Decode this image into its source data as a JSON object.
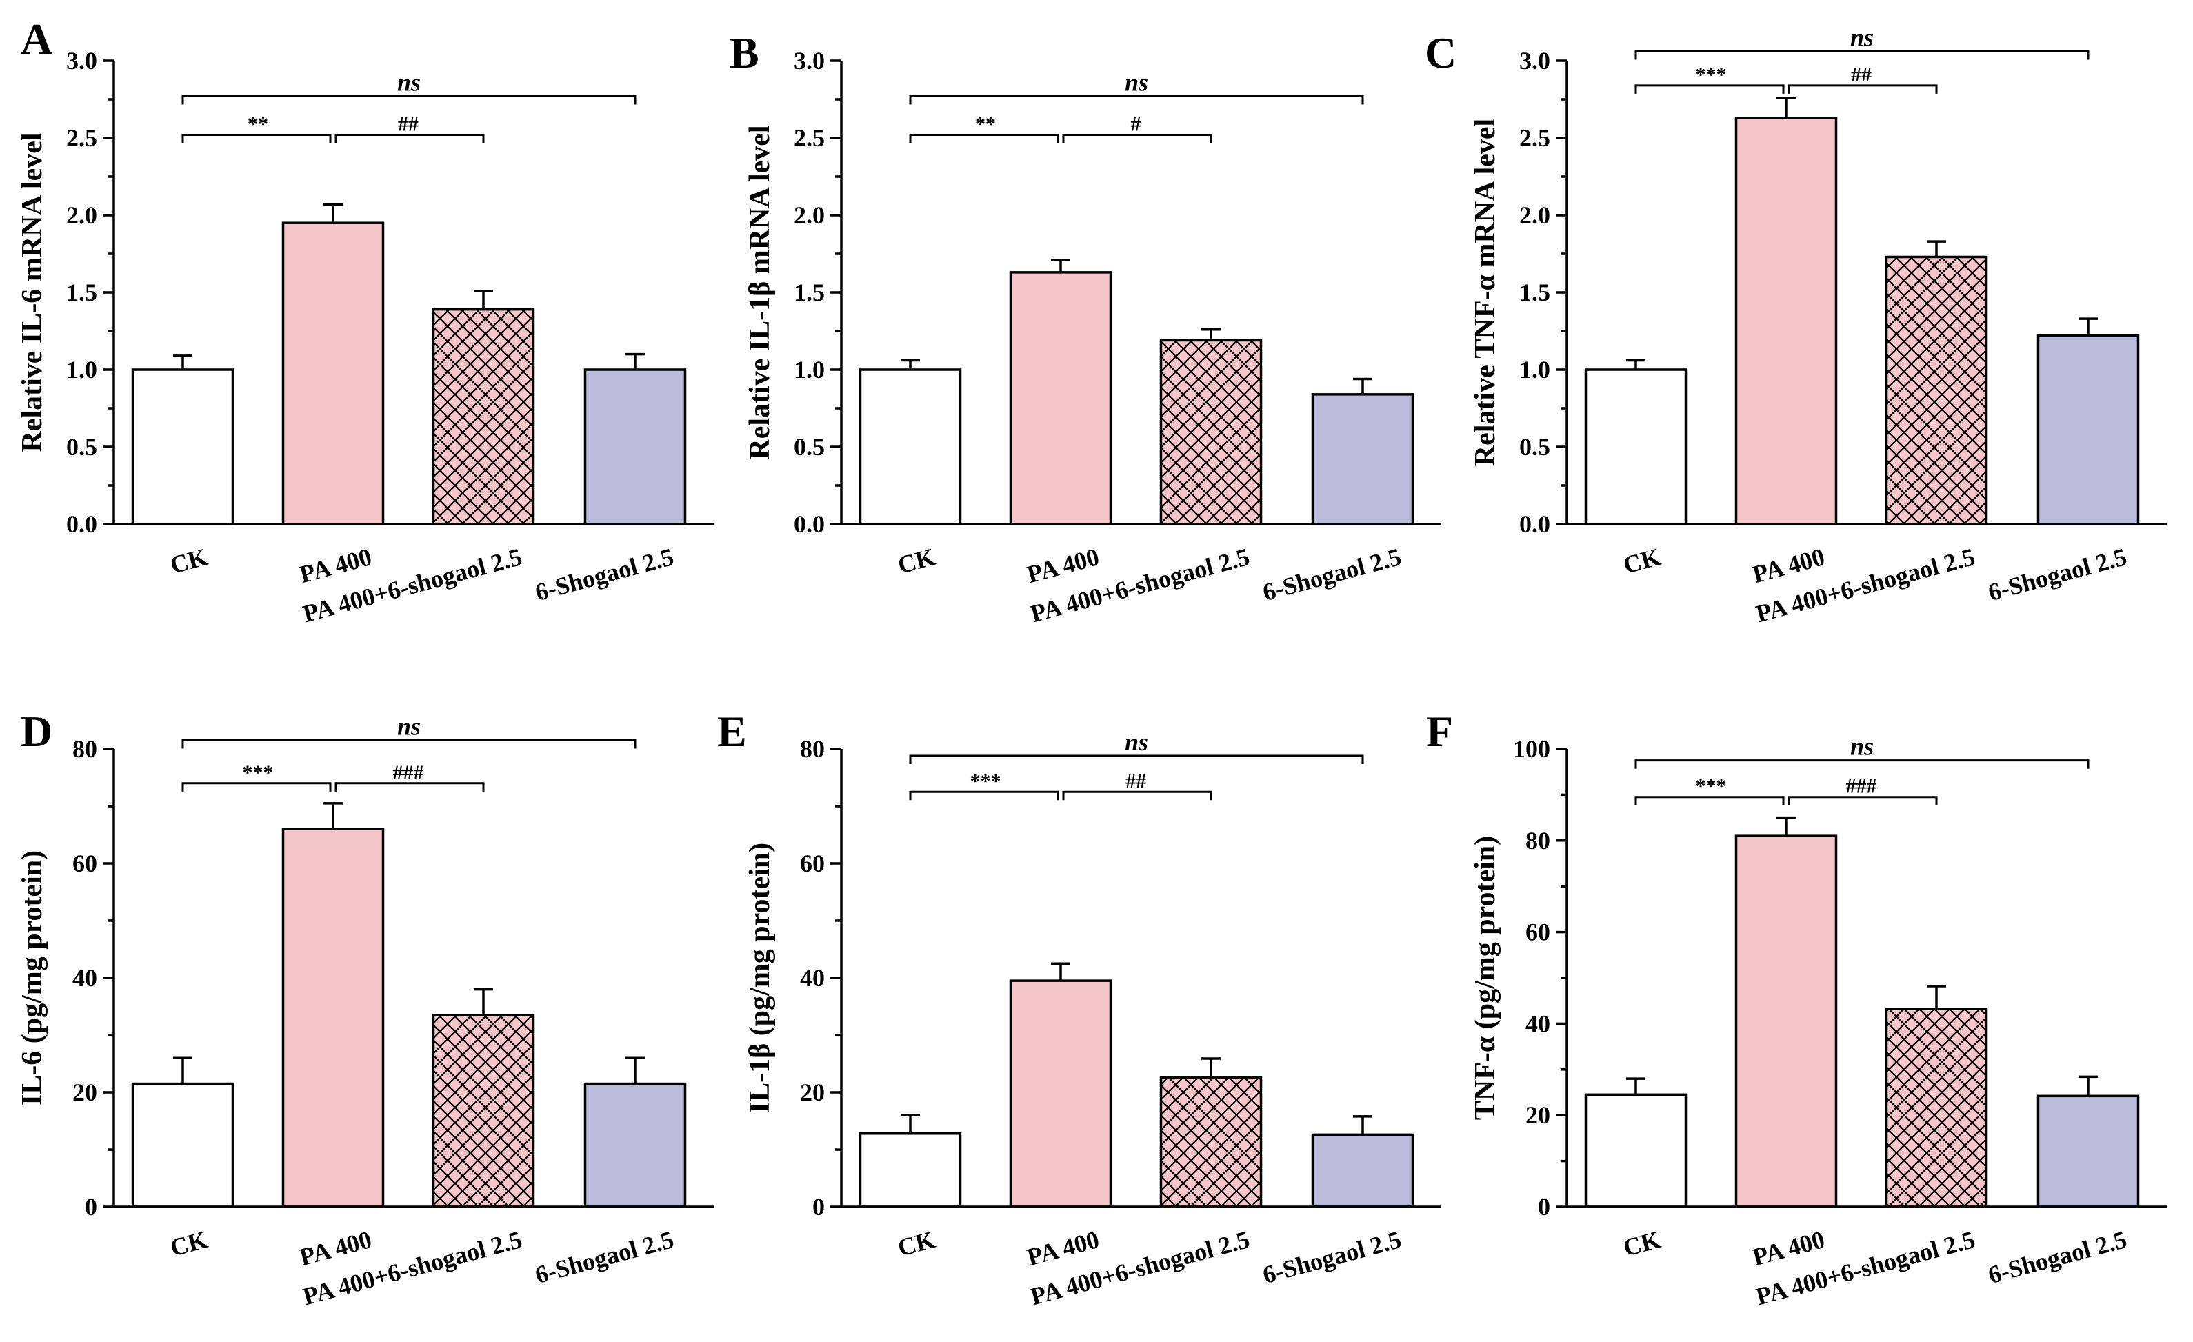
{
  "categories": [
    "CK",
    "PA 400",
    "PA 400+6-shogaol 2.5",
    "6-Shogaol 2.5"
  ],
  "bar_styles": [
    {
      "fill": "#ffffff",
      "pattern": "none"
    },
    {
      "fill": "#f4c5c9",
      "pattern": "none"
    },
    {
      "fill": "#f4c5c9",
      "pattern": "crosshatch"
    },
    {
      "fill": "#babbdb",
      "pattern": "none"
    }
  ],
  "chart_data": [
    {
      "panel": "A",
      "type": "bar",
      "ylabel": "Relative IL-6 mRNA level",
      "ylim": [
        0,
        3.0
      ],
      "yticks": [
        "0.0",
        "0.5",
        "1.0",
        "1.5",
        "2.0",
        "2.5",
        "3.0"
      ],
      "categories": [
        "CK",
        "PA 400",
        "PA 400+6-shogaol 2.5",
        "6-Shogaol 2.5"
      ],
      "values": [
        1.0,
        1.95,
        1.39,
        1.0
      ],
      "errors": [
        0.09,
        0.12,
        0.12,
        0.1
      ],
      "sig_left": "**",
      "sig_right": "##",
      "sig_ns": "ns",
      "sig_left_y": 2.52,
      "sig_ns_y": 2.77
    },
    {
      "panel": "B",
      "type": "bar",
      "ylabel": "Relative IL-1β mRNA level",
      "ylim": [
        0,
        3.0
      ],
      "yticks": [
        "0.0",
        "0.5",
        "1.0",
        "1.5",
        "2.0",
        "2.5",
        "3.0"
      ],
      "categories": [
        "CK",
        "PA 400",
        "PA 400+6-shogaol 2.5",
        "6-Shogaol 2.5"
      ],
      "values": [
        1.0,
        1.63,
        1.19,
        0.84
      ],
      "errors": [
        0.06,
        0.08,
        0.07,
        0.1
      ],
      "sig_left": "**",
      "sig_right": "#",
      "sig_ns": "ns",
      "sig_left_y": 2.52,
      "sig_ns_y": 2.77
    },
    {
      "panel": "C",
      "type": "bar",
      "ylabel": "Relative TNF-α mRNA level",
      "ylim": [
        0,
        3.0
      ],
      "yticks": [
        "0.0",
        "0.5",
        "1.0",
        "1.5",
        "2.0",
        "2.5",
        "3.0"
      ],
      "categories": [
        "CK",
        "PA 400",
        "PA 400+6-shogaol 2.5",
        "6-Shogaol 2.5"
      ],
      "values": [
        1.0,
        2.63,
        1.73,
        1.22
      ],
      "errors": [
        0.06,
        0.13,
        0.1,
        0.11
      ],
      "sig_left": "***",
      "sig_right": "##",
      "sig_ns": "ns",
      "sig_left_y": 2.84,
      "sig_ns_y": 3.06
    },
    {
      "panel": "D",
      "type": "bar",
      "ylabel": "IL-6 (pg/mg protein)",
      "ylim": [
        0,
        80
      ],
      "yticks": [
        "0",
        "20",
        "40",
        "60",
        "80"
      ],
      "categories": [
        "CK",
        "PA 400",
        "PA 400+6-shogaol 2.5",
        "6-Shogaol 2.5"
      ],
      "values": [
        21.5,
        66.0,
        33.5,
        21.5
      ],
      "errors": [
        4.5,
        4.5,
        4.5,
        4.5
      ],
      "sig_left": "***",
      "sig_right": "###",
      "sig_ns": "ns",
      "sig_left_y": 74.0,
      "sig_ns_y": 81.5
    },
    {
      "panel": "E",
      "type": "bar",
      "ylabel": "IL-1β (pg/mg protein)",
      "ylim": [
        0,
        80
      ],
      "yticks": [
        "0",
        "20",
        "40",
        "60",
        "80"
      ],
      "categories": [
        "CK",
        "PA 400",
        "PA 400+6-shogaol 2.5",
        "6-Shogaol 2.5"
      ],
      "values": [
        12.8,
        39.5,
        22.6,
        12.6
      ],
      "errors": [
        3.2,
        3.0,
        3.3,
        3.2
      ],
      "sig_left": "***",
      "sig_right": "##",
      "sig_ns": "ns",
      "sig_left_y": 72.5,
      "sig_ns_y": 78.8
    },
    {
      "panel": "F",
      "type": "bar",
      "ylabel": "TNF-α (pg/mg protein)",
      "ylim": [
        0,
        100
      ],
      "yticks": [
        "0",
        "20",
        "40",
        "60",
        "80",
        "100"
      ],
      "categories": [
        "CK",
        "PA 400",
        "PA 400+6-shogaol 2.5",
        "6-Shogaol 2.5"
      ],
      "values": [
        24.5,
        81.0,
        43.2,
        24.2
      ],
      "errors": [
        3.5,
        4.0,
        5.0,
        4.2
      ],
      "sig_left": "***",
      "sig_right": "###",
      "sig_ns": "ns",
      "sig_left_y": 89.5,
      "sig_ns_y": 97.5
    }
  ]
}
